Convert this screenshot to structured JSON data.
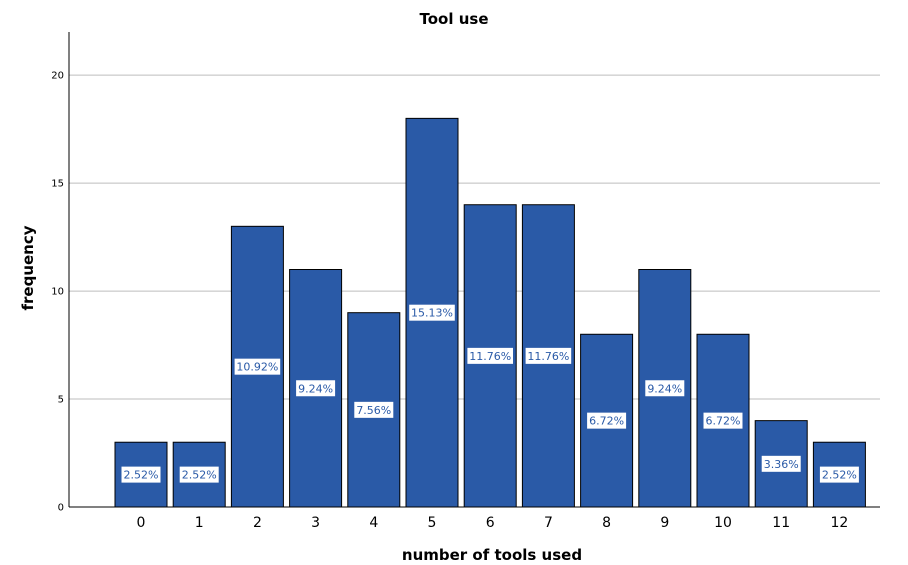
{
  "chart_data": {
    "type": "bar",
    "title": "Tool use",
    "xlabel": "number of tools used",
    "ylabel": "frequency",
    "categories": [
      "0",
      "1",
      "2",
      "3",
      "4",
      "5",
      "6",
      "7",
      "8",
      "9",
      "10",
      "11",
      "12"
    ],
    "values": [
      3,
      3,
      13,
      11,
      9,
      18,
      14,
      14,
      8,
      11,
      8,
      4,
      3
    ],
    "data_labels": [
      "2.52%",
      "2.52%",
      "10.92%",
      "9.24%",
      "7.56%",
      "15.13%",
      "11.76%",
      "11.76%",
      "6.72%",
      "9.24%",
      "6.72%",
      "3.36%",
      "2.52%"
    ],
    "yticks": [
      0,
      5,
      10,
      15,
      20
    ],
    "ylim": [
      0,
      22
    ],
    "grid": true,
    "legend": "none",
    "colors": {
      "bar": "#2a5aa7",
      "bar_edge": "#000000",
      "grid": "#bdbdbd",
      "label_text": "#2a5aa7"
    }
  }
}
